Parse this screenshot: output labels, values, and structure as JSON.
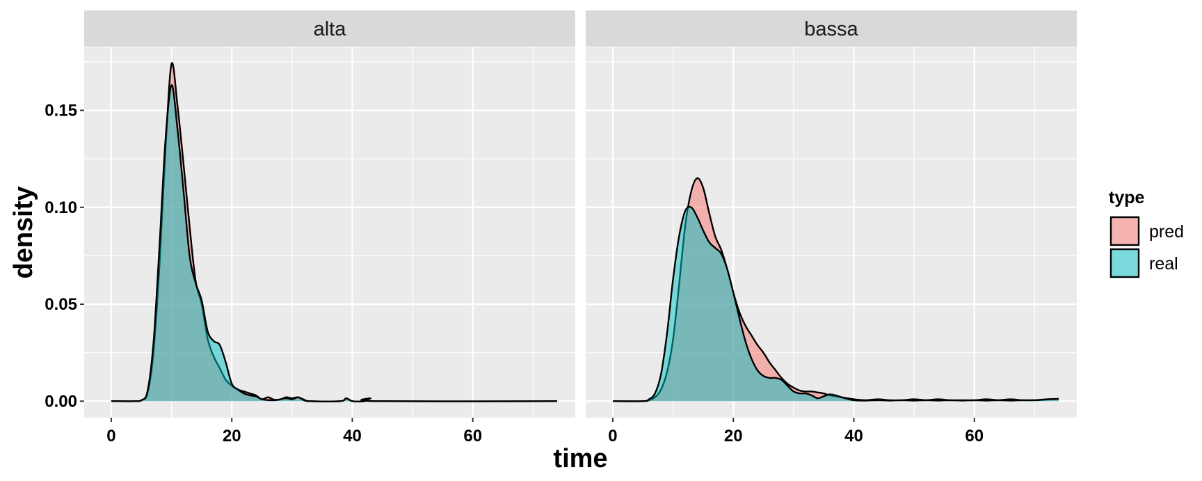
{
  "chart_data": {
    "type": "area",
    "xlabel": "time",
    "ylabel": "density",
    "xlim": [
      -4.5,
      77
    ],
    "ylim": [
      -0.0085,
      0.1825
    ],
    "x_ticks": [
      0,
      20,
      40,
      60
    ],
    "x_tick_labels": [
      "0",
      "20",
      "40",
      "60"
    ],
    "y_ticks": [
      0.0,
      0.05,
      0.1,
      0.15
    ],
    "y_tick_labels": [
      "0.00",
      "0.05",
      "0.10",
      "0.15"
    ],
    "grid": true,
    "legend": {
      "title": "type",
      "position": "right",
      "entries": [
        {
          "label": "pred",
          "color": "#F8766D"
        },
        {
          "label": "real",
          "color": "#00BFC4"
        }
      ]
    },
    "facets": [
      {
        "label": "alta",
        "series": [
          {
            "name": "pred",
            "color": "#F8766D",
            "points": [
              [
                0,
                0
              ],
              [
                4,
                0
              ],
              [
                5,
                0.0005
              ],
              [
                6,
                0.004
              ],
              [
                7,
                0.025
              ],
              [
                8,
                0.07
              ],
              [
                9,
                0.13
              ],
              [
                10,
                0.174
              ],
              [
                11,
                0.152
              ],
              [
                12,
                0.122
              ],
              [
                13,
                0.09
              ],
              [
                14,
                0.062
              ],
              [
                15,
                0.05
              ],
              [
                16,
                0.032
              ],
              [
                17,
                0.023
              ],
              [
                18,
                0.017
              ],
              [
                19,
                0.011
              ],
              [
                20,
                0.008
              ],
              [
                21,
                0.006
              ],
              [
                22,
                0.005
              ],
              [
                23,
                0.004
              ],
              [
                24,
                0.003
              ],
              [
                25,
                0.001
              ],
              [
                26,
                0.002
              ],
              [
                27,
                0.0008
              ],
              [
                28,
                0.0008
              ],
              [
                29,
                0.002
              ],
              [
                30,
                0.0015
              ],
              [
                31,
                0.002
              ],
              [
                32,
                0.0008
              ],
              [
                33,
                0
              ],
              [
                38,
                0
              ],
              [
                39,
                0.0015
              ],
              [
                40,
                0
              ],
              [
                42,
                0
              ],
              [
                43,
                0.0015
              ],
              [
                44,
                0
              ],
              [
                74,
                0
              ]
            ]
          },
          {
            "name": "real",
            "color": "#00BFC4",
            "points": [
              [
                0,
                0
              ],
              [
                4,
                0
              ],
              [
                5,
                0.0005
              ],
              [
                6,
                0.005
              ],
              [
                7,
                0.03
              ],
              [
                8,
                0.08
              ],
              [
                9,
                0.135
              ],
              [
                10,
                0.163
              ],
              [
                11,
                0.14
              ],
              [
                12,
                0.108
              ],
              [
                13,
                0.075
              ],
              [
                14,
                0.061
              ],
              [
                15,
                0.052
              ],
              [
                16,
                0.036
              ],
              [
                17,
                0.031
              ],
              [
                18,
                0.029
              ],
              [
                19,
                0.02
              ],
              [
                20,
                0.009
              ],
              [
                21,
                0.006
              ],
              [
                22,
                0.004
              ],
              [
                23,
                0.003
              ],
              [
                24,
                0.0025
              ],
              [
                25,
                0.001
              ],
              [
                27,
                0.0005
              ],
              [
                29,
                0.0015
              ],
              [
                30,
                0.001
              ],
              [
                31,
                0.002
              ],
              [
                32,
                0.0005
              ],
              [
                33,
                0
              ],
              [
                38,
                0
              ],
              [
                39,
                0.0015
              ],
              [
                40,
                0
              ],
              [
                42,
                0
              ],
              [
                43,
                0.0015
              ],
              [
                44,
                0
              ],
              [
                74,
                0
              ]
            ]
          }
        ]
      },
      {
        "label": "bassa",
        "series": [
          {
            "name": "pred",
            "color": "#F8766D",
            "points": [
              [
                0,
                0
              ],
              [
                5,
                0
              ],
              [
                6,
                0.0005
              ],
              [
                7,
                0.002
              ],
              [
                8,
                0.006
              ],
              [
                9,
                0.015
              ],
              [
                10,
                0.032
              ],
              [
                11,
                0.06
              ],
              [
                12,
                0.09
              ],
              [
                13,
                0.108
              ],
              [
                14,
                0.115
              ],
              [
                15,
                0.11
              ],
              [
                16,
                0.097
              ],
              [
                17,
                0.085
              ],
              [
                18,
                0.078
              ],
              [
                19,
                0.068
              ],
              [
                20,
                0.056
              ],
              [
                21,
                0.046
              ],
              [
                22,
                0.039
              ],
              [
                23,
                0.034
              ],
              [
                24,
                0.029
              ],
              [
                25,
                0.025
              ],
              [
                26,
                0.02
              ],
              [
                27,
                0.016
              ],
              [
                28,
                0.012
              ],
              [
                29,
                0.009
              ],
              [
                30,
                0.007
              ],
              [
                31,
                0.0055
              ],
              [
                32,
                0.005
              ],
              [
                33,
                0.005
              ],
              [
                34,
                0.0045
              ],
              [
                35,
                0.004
              ],
              [
                36,
                0.003
              ],
              [
                38,
                0.002
              ],
              [
                40,
                0.001
              ],
              [
                42,
                0.0005
              ],
              [
                44,
                0.001
              ],
              [
                46,
                0.0005
              ],
              [
                48,
                0.0005
              ],
              [
                50,
                0.001
              ],
              [
                52,
                0.0005
              ],
              [
                54,
                0.001
              ],
              [
                56,
                0.0005
              ],
              [
                58,
                0.0005
              ],
              [
                60,
                0.0005
              ],
              [
                62,
                0.001
              ],
              [
                64,
                0.0005
              ],
              [
                66,
                0.001
              ],
              [
                68,
                0.0005
              ],
              [
                70,
                0.0005
              ],
              [
                72,
                0.0008
              ],
              [
                74,
                0.0012
              ]
            ]
          },
          {
            "name": "real",
            "color": "#00BFC4",
            "points": [
              [
                0,
                0
              ],
              [
                5,
                0
              ],
              [
                6,
                0.001
              ],
              [
                7,
                0.004
              ],
              [
                8,
                0.014
              ],
              [
                9,
                0.035
              ],
              [
                10,
                0.063
              ],
              [
                11,
                0.085
              ],
              [
                12,
                0.098
              ],
              [
                13,
                0.1
              ],
              [
                14,
                0.095
              ],
              [
                15,
                0.088
              ],
              [
                16,
                0.082
              ],
              [
                17,
                0.079
              ],
              [
                18,
                0.076
              ],
              [
                19,
                0.068
              ],
              [
                20,
                0.056
              ],
              [
                21,
                0.043
              ],
              [
                22,
                0.031
              ],
              [
                23,
                0.022
              ],
              [
                24,
                0.016
              ],
              [
                25,
                0.013
              ],
              [
                26,
                0.012
              ],
              [
                27,
                0.012
              ],
              [
                28,
                0.011
              ],
              [
                29,
                0.008
              ],
              [
                30,
                0.005
              ],
              [
                31,
                0.004
              ],
              [
                32,
                0.004
              ],
              [
                33,
                0.003
              ],
              [
                34,
                0.0015
              ],
              [
                35,
                0.0025
              ],
              [
                36,
                0.0035
              ],
              [
                37,
                0.003
              ],
              [
                38,
                0.002
              ],
              [
                40,
                0.0005
              ],
              [
                42,
                0.0003
              ],
              [
                44,
                0.0005
              ],
              [
                46,
                0.0003
              ],
              [
                48,
                0.0005
              ],
              [
                50,
                0.0003
              ],
              [
                52,
                0.0005
              ],
              [
                54,
                0.0003
              ],
              [
                56,
                0.0005
              ],
              [
                58,
                0.0003
              ],
              [
                60,
                0.0005
              ],
              [
                62,
                0.0003
              ],
              [
                64,
                0.0005
              ],
              [
                66,
                0.0003
              ],
              [
                68,
                0.0005
              ],
              [
                70,
                0.0005
              ],
              [
                72,
                0.001
              ],
              [
                74,
                0.0012
              ]
            ]
          }
        ]
      }
    ]
  }
}
